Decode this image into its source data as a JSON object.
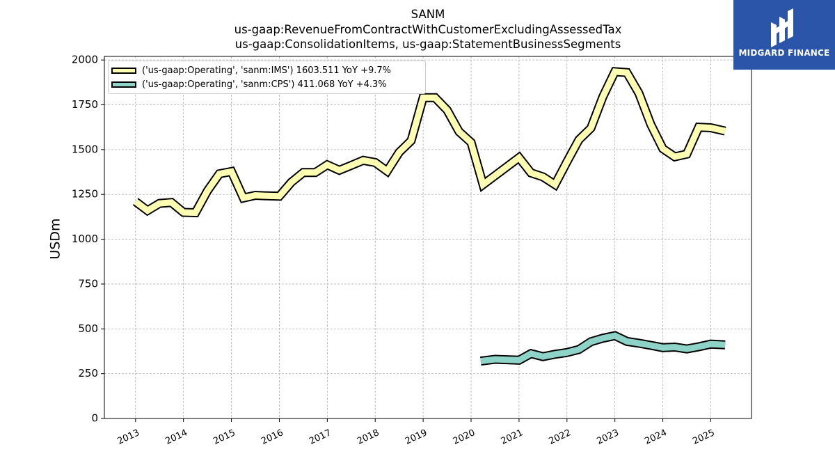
{
  "header": {
    "title_line1": "SANM",
    "title_line2": "us-gaap:RevenueFromContractWithCustomerExcludingAssessedTax",
    "title_line3": "us-gaap:ConsolidationItems, us-gaap:StatementBusinessSegments"
  },
  "logo": {
    "text": "MIDGARD FINANCE",
    "icon": "midgard-m-logo-icon",
    "background": "#2a55a8"
  },
  "chart_data": {
    "type": "line",
    "title": "SANM",
    "subtitle": "us-gaap:RevenueFromContractWithCustomerExcludingAssessedTax / us-gaap:ConsolidationItems, us-gaap:StatementBusinessSegments",
    "xlabel": "",
    "ylabel": "USDm",
    "ylim": [
      0,
      2020
    ],
    "xlim": [
      2012.35,
      2025.85
    ],
    "yticks": [
      0,
      250,
      500,
      750,
      1000,
      1250,
      1500,
      1750,
      2000
    ],
    "xticks": [
      "2013",
      "2014",
      "2015",
      "2016",
      "2017",
      "2018",
      "2019",
      "2020",
      "2021",
      "2022",
      "2023",
      "2024",
      "2025"
    ],
    "grid": true,
    "legend_position": "top-left",
    "series": [
      {
        "name": "('us-gaap:Operating', 'sanm:IMS') 1603.511 YoY +9.7%",
        "color": "#ffffb3",
        "x": [
          2013.0,
          2013.25,
          2013.5,
          2013.75,
          2014.0,
          2014.25,
          2014.5,
          2014.75,
          2015.0,
          2015.25,
          2015.5,
          2015.75,
          2016.0,
          2016.25,
          2016.5,
          2016.75,
          2017.0,
          2017.25,
          2017.5,
          2017.75,
          2018.0,
          2018.25,
          2018.5,
          2018.75,
          2019.0,
          2019.25,
          2019.5,
          2019.75,
          2020.0,
          2020.25,
          2021.0,
          2021.25,
          2021.5,
          2021.75,
          2022.0,
          2022.25,
          2022.5,
          2022.75,
          2023.0,
          2023.25,
          2023.5,
          2023.75,
          2024.0,
          2024.25,
          2024.5,
          2024.75,
          2025.0,
          2025.3
        ],
        "values": [
          1210,
          1160,
          1200,
          1205,
          1150,
          1148,
          1270,
          1365,
          1378,
          1230,
          1245,
          1242,
          1240,
          1318,
          1372,
          1372,
          1415,
          1385,
          1412,
          1440,
          1428,
          1380,
          1485,
          1550,
          1790,
          1790,
          1720,
          1600,
          1540,
          1305,
          1455,
          1370,
          1348,
          1305,
          1432,
          1555,
          1620,
          1795,
          1935,
          1930,
          1815,
          1640,
          1505,
          1460,
          1475,
          1625,
          1622,
          1603.5
        ]
      },
      {
        "name": "('us-gaap:Operating', 'sanm:CPS') 411.068 YoY +4.3%",
        "color": "#8dd3c7",
        "x": [
          2020.2,
          2020.5,
          2021.0,
          2021.25,
          2021.5,
          2021.75,
          2022.0,
          2022.25,
          2022.5,
          2022.75,
          2023.0,
          2023.25,
          2023.5,
          2023.75,
          2024.0,
          2024.25,
          2024.5,
          2024.75,
          2025.0,
          2025.3
        ],
        "values": [
          320,
          330,
          325,
          362,
          345,
          358,
          368,
          385,
          428,
          448,
          462,
          430,
          420,
          408,
          395,
          398,
          388,
          400,
          415,
          411.1
        ]
      }
    ]
  }
}
